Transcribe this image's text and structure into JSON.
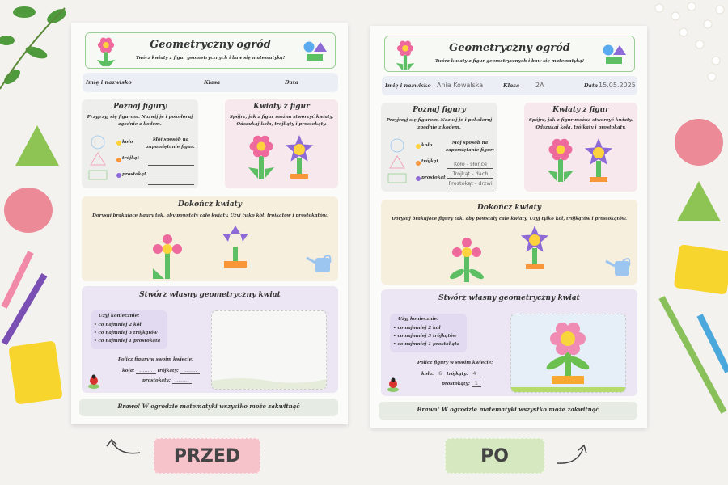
{
  "sheets": [
    {
      "label": "PRZED",
      "header": {
        "title": "Geometryczny ogród",
        "subtitle": "Twórz kwiaty z figur geometrycznych i baw się matematyką!"
      },
      "fields": {
        "name_label": "Imię i nazwisko",
        "name_value": "",
        "class_label": "Klasa",
        "class_value": "",
        "date_label": "Data",
        "date_value": ""
      },
      "learn": {
        "title": "Poznaj figury",
        "text": "Przyjrzyj się figurom. Nazwij je i pokoloruj zgodnie z kodem.",
        "shapes": [
          "koło",
          "trójkąt",
          "prostokąt"
        ],
        "memory_label": "Mój sposób na zapamiętanie figur:",
        "memory": [
          "",
          "",
          ""
        ]
      },
      "flowers": {
        "title": "Kwiaty z figur",
        "text": "Spójrz, jak z figur można stworzyć kwiaty. Odszukaj koła, trójkąty i prostokąty."
      },
      "finish": {
        "title": "Dokończ kwiaty",
        "text": "Dorysuj brakujące figury tak, aby powstały całe kwiaty. Użyj tylko kół, trójkątów i prostokątów.",
        "completed": false
      },
      "create": {
        "title": "Stwórz własny geometryczny kwiat",
        "must_label": "Użyj koniecznie:",
        "must": [
          "co najmniej 2 kół",
          "co najmniej 3 trójkątów",
          "co najmniej 1 prostokąta"
        ],
        "count_label": "Policz figury w swoim kwiecie:",
        "circles_label": "koła:",
        "circles": "........",
        "triangles_label": "trójkąty:",
        "triangles": "........",
        "rects_label": "prostokąty:",
        "rects": "........",
        "drawn": false
      },
      "footer": "Brawo! W ogrodzie matematyki wszystko może zakwitnąć"
    },
    {
      "label": "PO",
      "header": {
        "title": "Geometryczny ogród",
        "subtitle": "Twórz kwiaty z figur geometrycznych i baw się matematyką!"
      },
      "fields": {
        "name_label": "Imię i nazwisko",
        "name_value": "Ania Kowalska",
        "class_label": "Klasa",
        "class_value": "2A",
        "date_label": "Data",
        "date_value": "15.05.2025"
      },
      "learn": {
        "title": "Poznaj figury",
        "text": "Przyjrzyj się figurom. Nazwij je i pokoloruj zgodnie z kodem.",
        "shapes": [
          "koło",
          "trójkąt",
          "prostokąt"
        ],
        "memory_label": "Mój sposób na zapamiętanie figur:",
        "memory": [
          "Koło - słońce",
          "Trójkąt - dach",
          "Prostokąt - drzwi"
        ]
      },
      "flowers": {
        "title": "Kwiaty z figur",
        "text": "Spójrz, jak z figur można stworzyć kwiaty. Odszukaj koła, trójkąty i prostokąty."
      },
      "finish": {
        "title": "Dokończ kwiaty",
        "text": "Dorysuj brakujące figury tak, aby powstały całe kwiaty. Użyj tylko kół, trójkątów i prostokątów.",
        "completed": true
      },
      "create": {
        "title": "Stwórz własny geometryczny kwiat",
        "must_label": "Użyj koniecznie:",
        "must": [
          "co najmniej 2 kół",
          "co najmniej 3 trójkątów",
          "co najmniej 1 prostokąta"
        ],
        "count_label": "Policz figury w swoim kwiecie:",
        "circles_label": "koła:",
        "circles": "6",
        "triangles_label": "trójkąty:",
        "triangles": "4",
        "rects_label": "prostokąty:",
        "rects": "1",
        "drawn": true
      },
      "footer": "Brawo! W ogrodzie matematyki wszystko może zakwitnąć"
    }
  ],
  "colors": {
    "pink": "#ee6a9c",
    "yellow": "#fdd23c",
    "green": "#5cbf63",
    "purple": "#8d6ad6",
    "orange": "#f9963a",
    "blue": "#5aaaf0"
  }
}
